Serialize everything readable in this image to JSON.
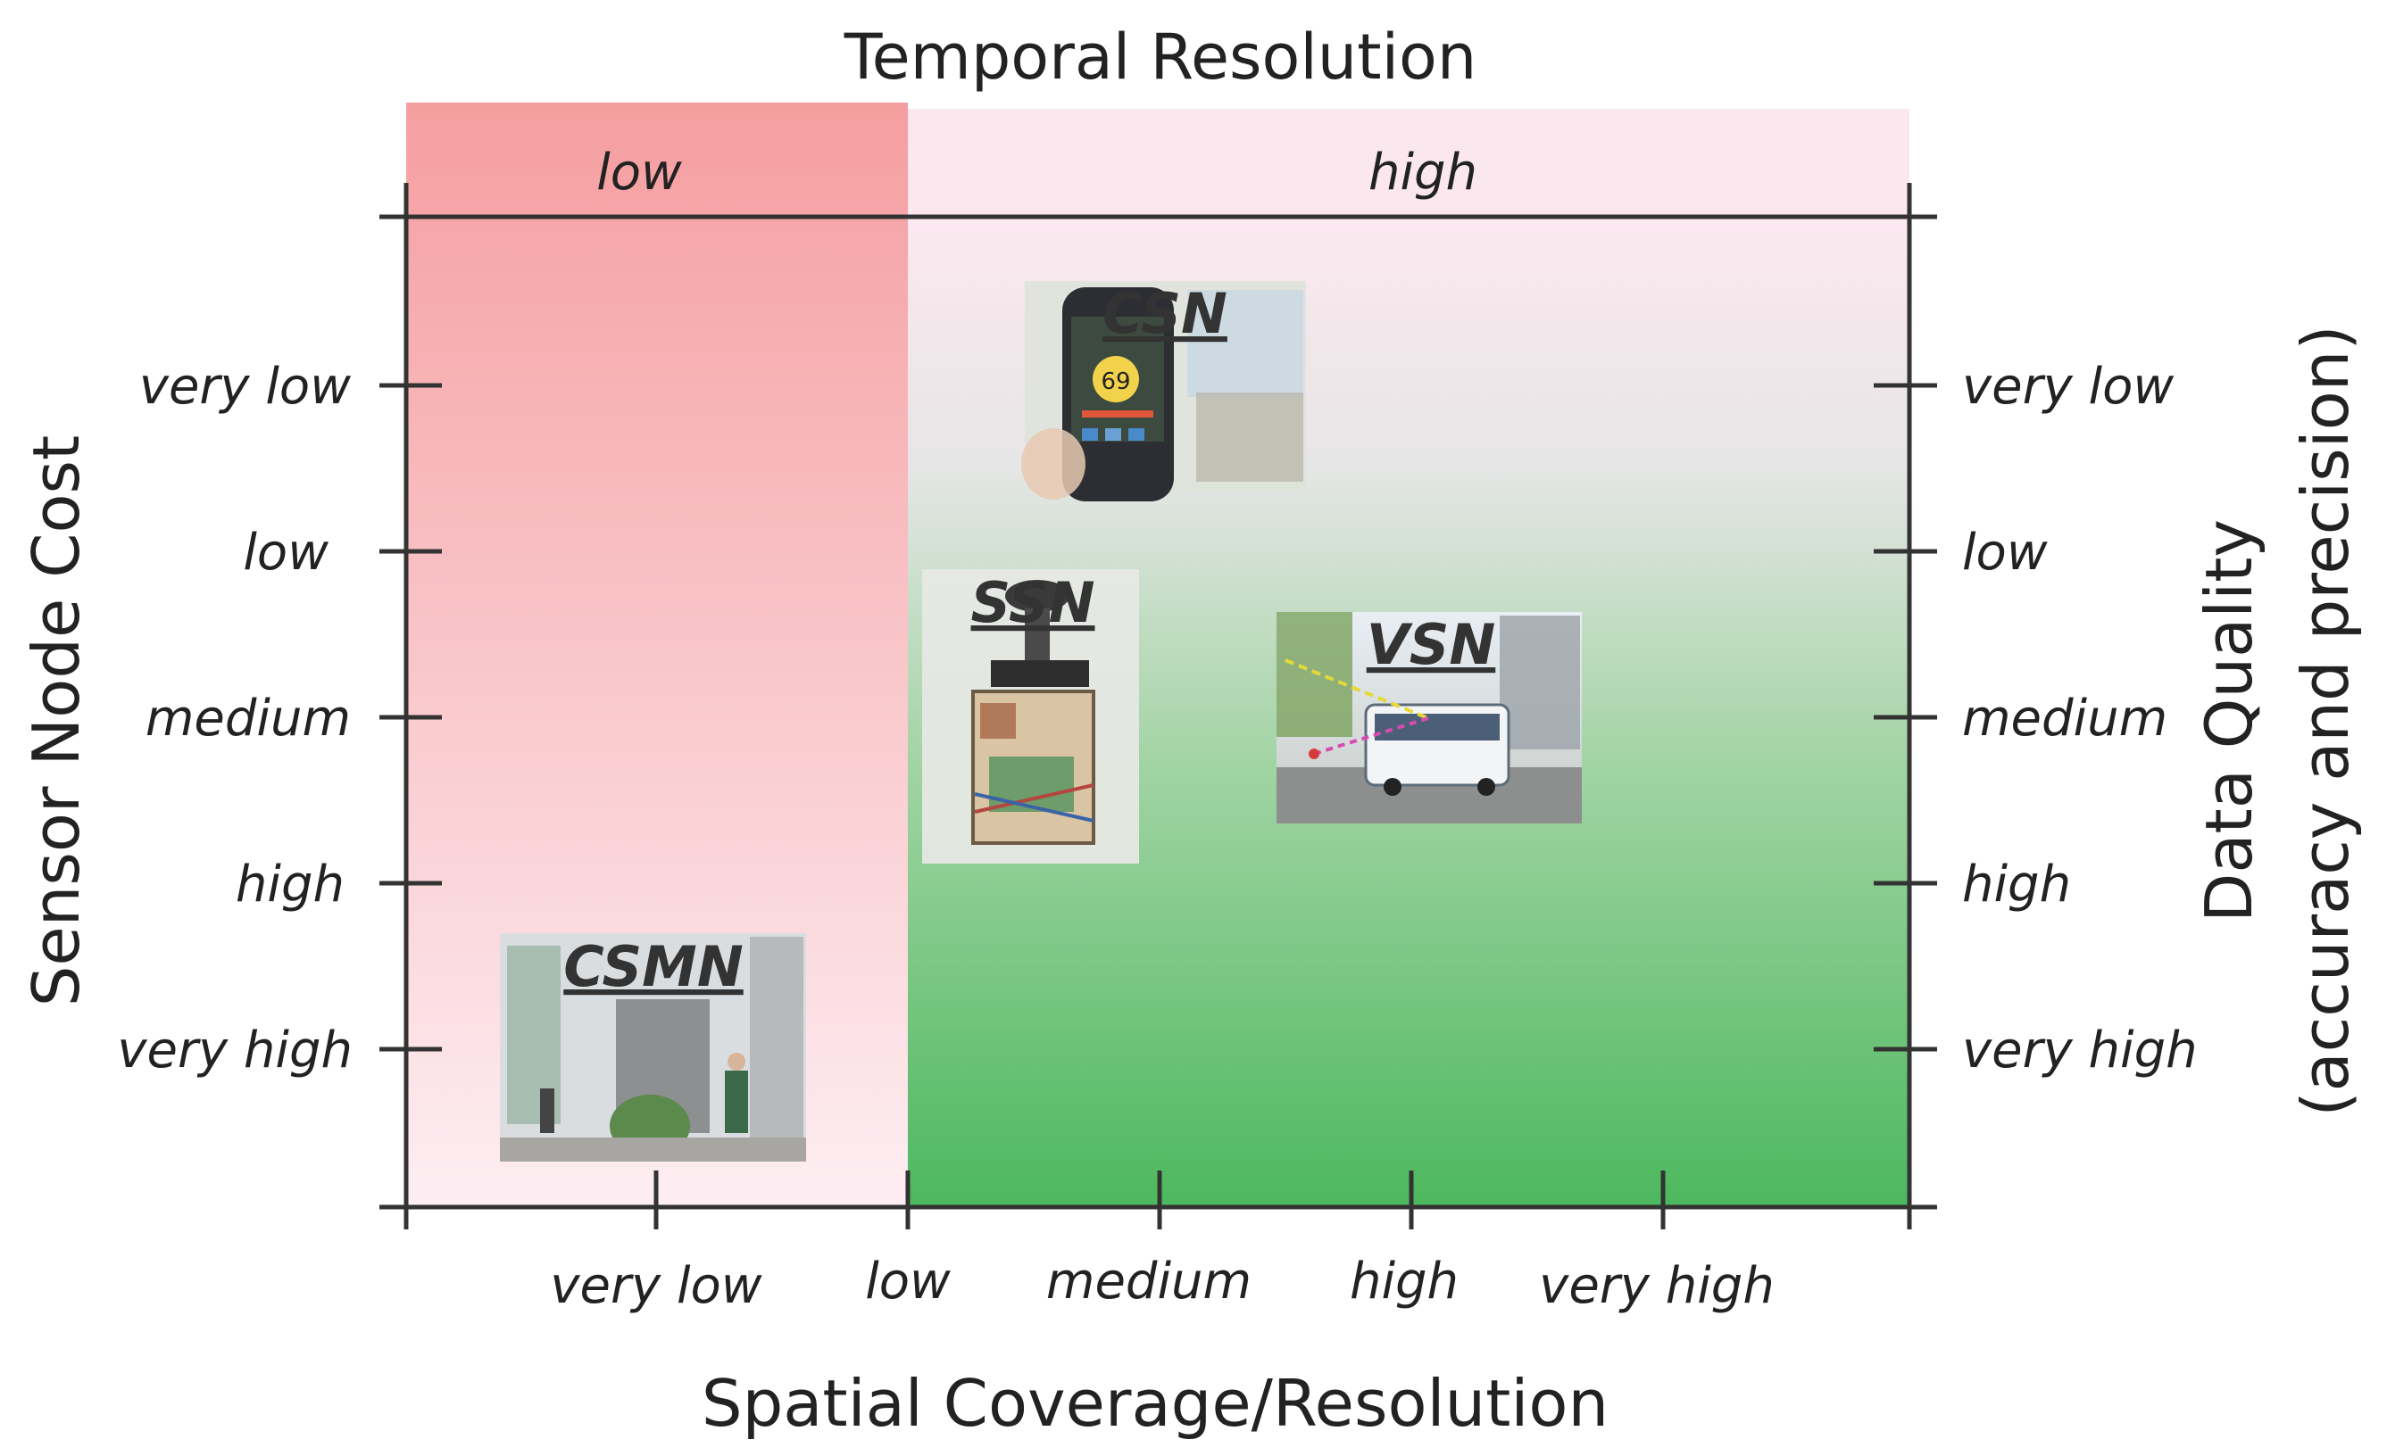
{
  "temporal_axis": {
    "title": "Temporal Resolution",
    "bands": [
      "low",
      "high"
    ]
  },
  "x_axis": {
    "title": "Spatial Coverage/Resolution",
    "ticks": [
      "very low",
      "low",
      "medium",
      "high",
      "very high"
    ]
  },
  "y_axis_left": {
    "title": "Sensor Node Cost",
    "ticks": [
      "very low",
      "low",
      "medium",
      "high",
      "very high"
    ]
  },
  "y_axis_right": {
    "title_line1": "Data Quality",
    "title_line2": "(accuracy and precision)",
    "ticks": [
      "very low",
      "low",
      "medium",
      "high",
      "very high"
    ]
  },
  "systems": [
    {
      "label": "CSN",
      "depicts": "smartphone showing reading 69",
      "reading": "69"
    },
    {
      "label": "SSN",
      "depicts": "sensor box with electronics"
    },
    {
      "label": "VSN",
      "depicts": "street with bus"
    },
    {
      "label": "CSMN",
      "depicts": "building entrance with person"
    }
  ],
  "colors": {
    "low_temporal_band": "#f59ea0",
    "high_temporal_band": "#fbe8ef",
    "gradient_top": "#fce8f0",
    "gradient_bottom": "#4cb85e"
  }
}
